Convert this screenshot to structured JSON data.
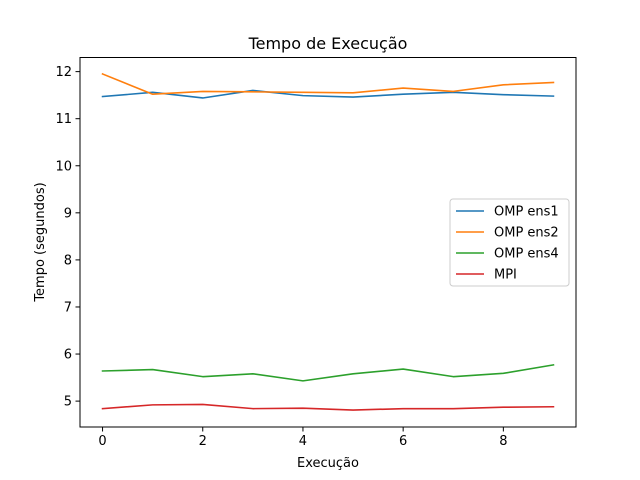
{
  "chart_data": {
    "type": "line",
    "title": "Tempo de Execução",
    "xlabel": "Execução",
    "ylabel": "Tempo (segundos)",
    "x": [
      0,
      1,
      2,
      3,
      4,
      5,
      6,
      7,
      8,
      9
    ],
    "xlim": [
      -0.45,
      9.45
    ],
    "ylim": [
      4.45,
      12.3
    ],
    "xticks": [
      0,
      2,
      4,
      6,
      8
    ],
    "yticks": [
      5,
      6,
      7,
      8,
      9,
      10,
      11,
      12
    ],
    "grid": false,
    "legend_position": "center-right",
    "series": [
      {
        "name": "OMP ens1",
        "color": "#1f77b4",
        "values": [
          11.47,
          11.56,
          11.44,
          11.6,
          11.49,
          11.46,
          11.52,
          11.56,
          11.51,
          11.48
        ]
      },
      {
        "name": "OMP ens2",
        "color": "#ff7f0e",
        "values": [
          11.95,
          11.52,
          11.58,
          11.57,
          11.56,
          11.55,
          11.65,
          11.58,
          11.72,
          11.77
        ]
      },
      {
        "name": "OMP ens4",
        "color": "#2ca02c",
        "values": [
          5.64,
          5.67,
          5.52,
          5.58,
          5.43,
          5.58,
          5.68,
          5.52,
          5.59,
          5.77
        ]
      },
      {
        "name": "MPI",
        "color": "#d62728",
        "values": [
          4.84,
          4.92,
          4.93,
          4.84,
          4.85,
          4.81,
          4.84,
          4.84,
          4.87,
          4.88
        ]
      }
    ]
  }
}
